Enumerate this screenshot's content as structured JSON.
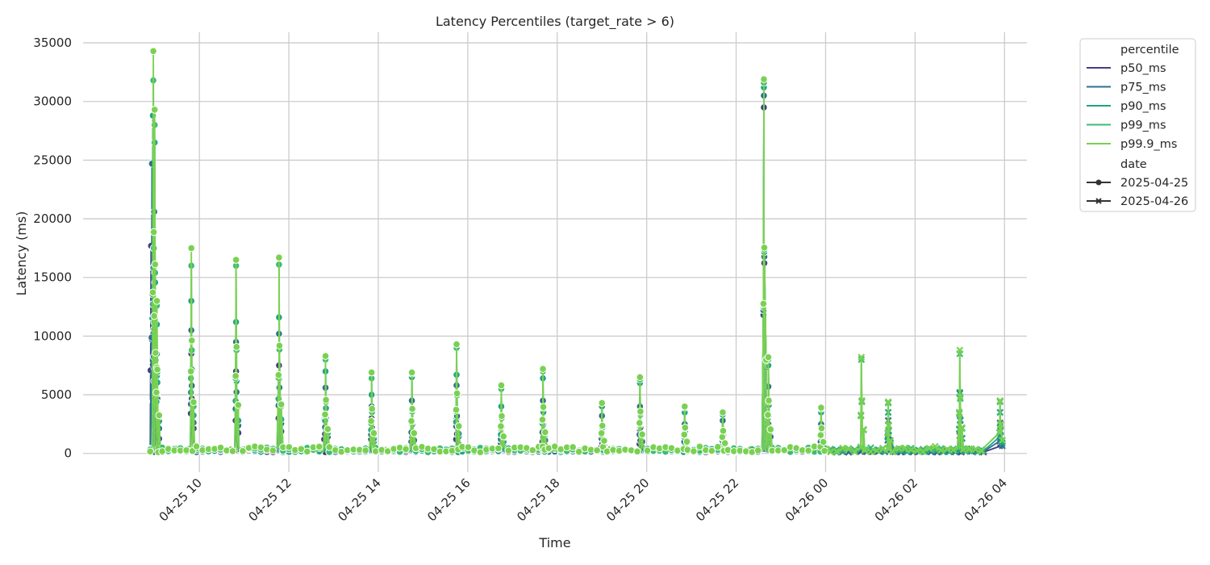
{
  "chart_data": {
    "type": "line",
    "title": "Latency Percentiles (target_rate > 6)",
    "xlabel": "Time",
    "ylabel": "Latency (ms)",
    "x_ticks": [
      "04-25 10",
      "04-25 12",
      "04-25 14",
      "04-25 16",
      "04-25 18",
      "04-25 20",
      "04-25 22",
      "04-26 00",
      "04-26 02",
      "04-26 04"
    ],
    "y_ticks": [
      0,
      5000,
      10000,
      15000,
      20000,
      25000,
      30000,
      35000
    ],
    "ylim": [
      -1600,
      35900
    ],
    "xlim_hours": [
      7.4,
      28.5
    ],
    "x_unit": "hours since 04-25 00:00",
    "grid": true,
    "legend_position": "outside-right",
    "legend": {
      "hue_title": "percentile",
      "style_title": "date",
      "styles": [
        {
          "label": "2025-04-25",
          "marker": "circle"
        },
        {
          "label": "2025-04-26",
          "marker": "x"
        }
      ]
    },
    "series": [
      {
        "name": "p50_ms",
        "color": "#433e85",
        "spikes": [
          [
            8.92,
            17700
          ],
          [
            8.97,
            18900
          ],
          [
            9.05,
            5000
          ],
          [
            9.82,
            8500
          ],
          [
            10.82,
            7000
          ],
          [
            11.78,
            7500
          ],
          [
            12.8,
            3000
          ],
          [
            13.85,
            3000
          ],
          [
            14.75,
            2500
          ],
          [
            15.75,
            3000
          ],
          [
            16.75,
            2000
          ],
          [
            17.68,
            2500
          ],
          [
            19.0,
            1500
          ],
          [
            19.85,
            2000
          ],
          [
            20.85,
            1500
          ],
          [
            21.7,
            1500
          ],
          [
            22.62,
            29500
          ],
          [
            22.72,
            2500
          ],
          [
            23.9,
            1500
          ],
          [
            25.4,
            1500
          ],
          [
            27.0,
            1500
          ],
          [
            27.9,
            1500
          ]
        ]
      },
      {
        "name": "p75_ms",
        "color": "#2d708e",
        "spikes": [
          [
            8.94,
            24700
          ],
          [
            8.99,
            20600
          ],
          [
            9.05,
            8500
          ],
          [
            9.82,
            10500
          ],
          [
            10.82,
            9500
          ],
          [
            11.78,
            10200
          ],
          [
            12.82,
            5600
          ],
          [
            13.85,
            4000
          ],
          [
            14.75,
            4500
          ],
          [
            15.75,
            5800
          ],
          [
            16.75,
            3000
          ],
          [
            17.68,
            4500
          ],
          [
            19.0,
            3200
          ],
          [
            19.85,
            4000
          ],
          [
            20.85,
            2500
          ],
          [
            21.7,
            2800
          ],
          [
            22.62,
            30500
          ],
          [
            22.72,
            5700
          ],
          [
            23.9,
            2500
          ],
          [
            25.4,
            2800
          ],
          [
            27.0,
            5100
          ],
          [
            27.9,
            2600
          ]
        ]
      },
      {
        "name": "p90_ms",
        "color": "#20a386",
        "spikes": [
          [
            8.96,
            28800
          ],
          [
            9.0,
            26500
          ],
          [
            9.05,
            11000
          ],
          [
            9.82,
            13000
          ],
          [
            10.82,
            11200
          ],
          [
            11.78,
            11600
          ],
          [
            12.82,
            7000
          ],
          [
            13.85,
            5000
          ],
          [
            14.75,
            6500
          ],
          [
            15.75,
            6700
          ],
          [
            16.75,
            4000
          ],
          [
            17.68,
            6400
          ],
          [
            19.0,
            4000
          ],
          [
            19.85,
            6000
          ],
          [
            20.85,
            3500
          ],
          [
            21.7,
            3300
          ],
          [
            22.62,
            31200
          ],
          [
            22.72,
            7500
          ],
          [
            23.9,
            3500
          ],
          [
            25.4,
            3500
          ],
          [
            27.0,
            5200
          ],
          [
            27.9,
            3500
          ]
        ]
      },
      {
        "name": "p99_ms",
        "color": "#3bbb75",
        "spikes": [
          [
            8.97,
            31800
          ],
          [
            9.0,
            28000
          ],
          [
            9.05,
            12600
          ],
          [
            9.82,
            16000
          ],
          [
            10.82,
            16000
          ],
          [
            11.78,
            16100
          ],
          [
            12.82,
            8000
          ],
          [
            13.85,
            6400
          ],
          [
            14.75,
            6800
          ],
          [
            15.75,
            9000
          ],
          [
            16.75,
            5500
          ],
          [
            17.68,
            7000
          ],
          [
            19.0,
            4300
          ],
          [
            19.85,
            6300
          ],
          [
            20.85,
            3900
          ],
          [
            21.7,
            3500
          ],
          [
            22.62,
            31600
          ],
          [
            22.72,
            8000
          ],
          [
            23.9,
            3800
          ],
          [
            24.8,
            8000
          ],
          [
            25.4,
            4300
          ],
          [
            27.0,
            8500
          ],
          [
            27.9,
            4400
          ]
        ]
      },
      {
        "name": "p99.9_ms",
        "color": "#7ad151",
        "spikes": [
          [
            8.97,
            34300
          ],
          [
            9.0,
            29300
          ],
          [
            9.05,
            13000
          ],
          [
            9.82,
            17500
          ],
          [
            10.82,
            16500
          ],
          [
            11.78,
            16700
          ],
          [
            12.82,
            8300
          ],
          [
            13.85,
            6900
          ],
          [
            14.75,
            6900
          ],
          [
            15.75,
            9300
          ],
          [
            16.75,
            5800
          ],
          [
            17.68,
            7200
          ],
          [
            19.0,
            4300
          ],
          [
            19.85,
            6500
          ],
          [
            20.85,
            4000
          ],
          [
            21.7,
            3500
          ],
          [
            22.62,
            31900
          ],
          [
            22.72,
            8200
          ],
          [
            23.9,
            3900
          ],
          [
            24.8,
            8200
          ],
          [
            25.4,
            4400
          ],
          [
            27.0,
            8800
          ],
          [
            27.9,
            4500
          ]
        ]
      }
    ]
  }
}
